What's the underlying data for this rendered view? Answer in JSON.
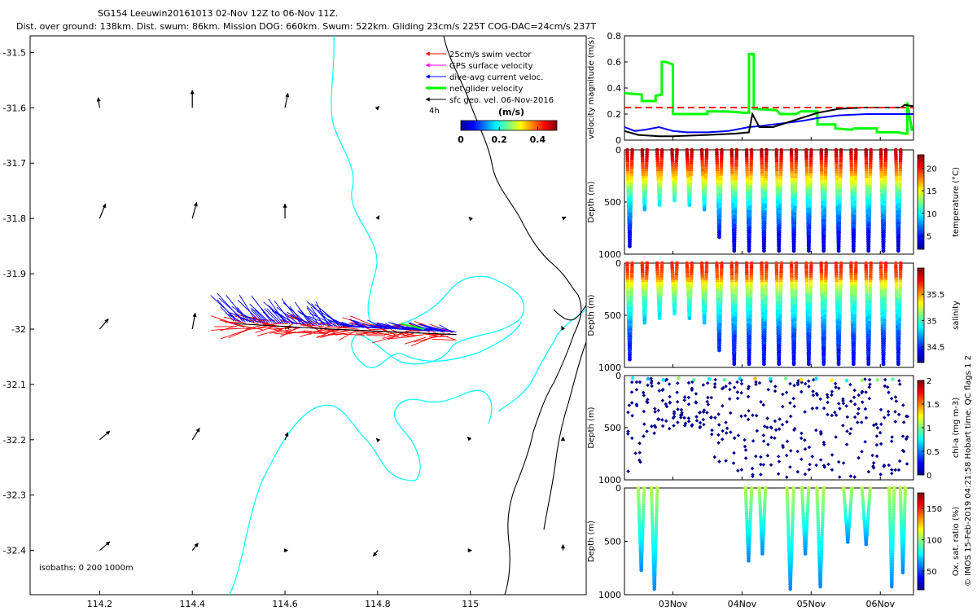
{
  "title": {
    "line1": "SG154 Leeuwin20161013 02-Nov 12Z to 06-Nov 11Z.",
    "line2": "Dist. over ground: 138km. Dist. swum: 86km. Mission DOG: 660km. Swum: 522km. Gliding 23cm/s 225T COG-DAC=24cm/s 237T"
  },
  "colors": {
    "swim": "#ff0000",
    "gps": "#ff00ff",
    "dac": "#0000ff",
    "net": "#00ff00",
    "sfc": "#000000",
    "coast": "#00ffff",
    "isobath": "#000000"
  },
  "chart_data": [
    {
      "type": "scatter",
      "id": "map",
      "xlabel": "",
      "ylabel": "",
      "xlim": [
        114.05,
        115.25
      ],
      "ylim": [
        -32.48,
        -31.47
      ],
      "xticks": [
        114.2,
        114.4,
        114.6,
        114.8,
        115
      ],
      "xtick_labels": [
        "114.2",
        "114.4",
        "114.6",
        "114.8",
        "115"
      ],
      "yticks": [
        -31.5,
        -31.6,
        -31.7,
        -31.8,
        -31.9,
        -32,
        -32.1,
        -32.2,
        -32.3,
        -32.4
      ],
      "ytick_labels": [
        "-31.5",
        "-31.6",
        "-31.7",
        "-31.8",
        "-31.9",
        "-32",
        "-32.1",
        "-32.2",
        "-32.3",
        "-32.4"
      ],
      "legend": [
        {
          "label": "25cm/s swim vector",
          "color": "#ff0000",
          "width": 1
        },
        {
          "label": "GPS surface velocity",
          "color": "#ff00ff",
          "width": 1
        },
        {
          "label": "dive-avg current veloc.",
          "color": "#0000ff",
          "width": 1
        },
        {
          "label": "net glider velocity",
          "color": "#00ff00",
          "width": 3
        },
        {
          "label": "sfc geo. vel. 06-Nov-2016",
          "color": "#000000",
          "width": 1
        }
      ],
      "legend_extra": "4h",
      "colorbar": {
        "label": "(m/s)",
        "ticks": [
          "0",
          "0.2",
          "0.4"
        ],
        "range": [
          0,
          0.5
        ]
      },
      "annotation": "isobaths: 0   200  1000m",
      "track_start": [
        114.49,
        -31.99
      ],
      "track_end": [
        114.97,
        -32.01
      ],
      "geo_vectors": [
        {
          "lon": 114.2,
          "lat": -31.6,
          "u": -0.01,
          "v": 0.07
        },
        {
          "lon": 114.4,
          "lat": -31.6,
          "u": 0.0,
          "v": 0.12
        },
        {
          "lon": 114.6,
          "lat": -31.6,
          "u": 0.02,
          "v": 0.1
        },
        {
          "lon": 114.8,
          "lat": -31.6,
          "u": 0.01,
          "v": 0.01
        },
        {
          "lon": 114.2,
          "lat": -31.8,
          "u": 0.04,
          "v": 0.1
        },
        {
          "lon": 114.4,
          "lat": -31.8,
          "u": 0.03,
          "v": 0.11
        },
        {
          "lon": 114.6,
          "lat": -31.8,
          "u": 0.0,
          "v": 0.1
        },
        {
          "lon": 114.8,
          "lat": -31.8,
          "u": 0.01,
          "v": 0.02
        },
        {
          "lon": 115.0,
          "lat": -31.8,
          "u": -0.01,
          "v": 0.01
        },
        {
          "lon": 115.2,
          "lat": -31.8,
          "u": 0.02,
          "v": 0.01
        },
        {
          "lon": 114.2,
          "lat": -32.0,
          "u": 0.06,
          "v": 0.07
        },
        {
          "lon": 114.4,
          "lat": -32.0,
          "u": 0.02,
          "v": 0.11
        },
        {
          "lon": 114.6,
          "lat": -32.0,
          "u": 0.04,
          "v": 0.02
        },
        {
          "lon": 115.2,
          "lat": -32.0,
          "u": -0.01,
          "v": 0.02
        },
        {
          "lon": 114.2,
          "lat": -32.2,
          "u": 0.07,
          "v": 0.06
        },
        {
          "lon": 114.4,
          "lat": -32.2,
          "u": 0.05,
          "v": 0.08
        },
        {
          "lon": 114.6,
          "lat": -32.2,
          "u": 0.02,
          "v": 0.05
        },
        {
          "lon": 114.8,
          "lat": -32.2,
          "u": -0.01,
          "v": 0.01
        },
        {
          "lon": 115.0,
          "lat": -32.2,
          "u": -0.02,
          "v": 0.02
        },
        {
          "lon": 115.2,
          "lat": -32.2,
          "u": 0.0,
          "v": 0.02
        },
        {
          "lon": 114.2,
          "lat": -32.4,
          "u": 0.07,
          "v": 0.06
        },
        {
          "lon": 114.4,
          "lat": -32.4,
          "u": 0.04,
          "v": 0.05
        },
        {
          "lon": 114.6,
          "lat": -32.4,
          "u": 0.02,
          "v": 0.0
        },
        {
          "lon": 114.8,
          "lat": -32.4,
          "u": -0.03,
          "v": -0.04
        },
        {
          "lon": 115.0,
          "lat": -32.4,
          "u": 0.01,
          "v": 0.0
        },
        {
          "lon": 115.2,
          "lat": -32.4,
          "u": 0.0,
          "v": 0.04
        }
      ]
    },
    {
      "type": "line",
      "id": "velocity",
      "ylabel": "velocity magnitude (m/s)",
      "ylim": [
        0,
        0.8
      ],
      "yticks": [
        0,
        0.2,
        0.4,
        0.6,
        0.8
      ],
      "ytick_labels": [
        "0",
        "0.2",
        "0.4",
        "0.6",
        "0.8"
      ],
      "xlim": [
        2.3,
        6.48
      ],
      "series": [
        {
          "name": "net glider velocity",
          "color": "#00ff00",
          "width": 3,
          "x": [
            2.3,
            2.55,
            2.55,
            2.62,
            2.75,
            2.75,
            2.84,
            2.84,
            2.9,
            3.0,
            3.0,
            3.18,
            3.5,
            3.5,
            3.78,
            4.03,
            4.1,
            4.1,
            4.17,
            4.17,
            4.5,
            4.55,
            4.7,
            4.78,
            4.85,
            5.05,
            5.09,
            5.09,
            5.35,
            5.35,
            5.58,
            5.62,
            5.95,
            5.95,
            6.25,
            6.35,
            6.39,
            6.39,
            6.46
          ],
          "y": [
            0.36,
            0.35,
            0.3,
            0.3,
            0.3,
            0.34,
            0.35,
            0.6,
            0.6,
            0.58,
            0.2,
            0.2,
            0.2,
            0.22,
            0.22,
            0.21,
            0.21,
            0.66,
            0.66,
            0.24,
            0.23,
            0.2,
            0.2,
            0.2,
            0.22,
            0.22,
            0.22,
            0.12,
            0.12,
            0.09,
            0.08,
            0.09,
            0.09,
            0.06,
            0.06,
            0.05,
            0.05,
            0.29,
            0.07
          ]
        },
        {
          "name": "dive-avg current",
          "color": "#0000ff",
          "width": 2,
          "x": [
            2.3,
            2.45,
            2.6,
            2.8,
            3.0,
            3.2,
            3.5,
            3.8,
            4.1,
            4.3,
            4.6,
            4.9,
            5.1,
            5.4,
            5.8,
            6.1,
            6.48
          ],
          "y": [
            0.1,
            0.07,
            0.08,
            0.1,
            0.07,
            0.06,
            0.06,
            0.07,
            0.1,
            0.11,
            0.13,
            0.15,
            0.17,
            0.19,
            0.2,
            0.2,
            0.2
          ]
        },
        {
          "name": "surface geostrophic",
          "color": "#000000",
          "width": 2,
          "x": [
            2.3,
            2.5,
            2.8,
            3.0,
            3.5,
            3.9,
            4.1,
            4.15,
            4.25,
            4.45,
            4.8,
            5.1,
            5.4,
            5.75,
            6.1,
            6.3,
            6.35,
            6.48
          ],
          "y": [
            0.07,
            0.04,
            0.03,
            0.03,
            0.04,
            0.05,
            0.06,
            0.2,
            0.1,
            0.1,
            0.16,
            0.21,
            0.24,
            0.25,
            0.25,
            0.25,
            0.27,
            0.26
          ]
        },
        {
          "name": "swim speed",
          "color": "#ff0000",
          "width": 2,
          "dashed": true,
          "x": [
            2.3,
            6.48
          ],
          "y": [
            0.25,
            0.25
          ]
        }
      ]
    },
    {
      "type": "scatter",
      "id": "temperature",
      "ylabel": "Depth (m)",
      "ylim": [
        1000,
        0
      ],
      "yticks": [
        0,
        500,
        1000
      ],
      "ytick_labels": [
        "0",
        "500",
        "1000"
      ],
      "colorbar": {
        "label": "temperature (°C)",
        "ticks": [
          "5",
          "10",
          "15",
          "20"
        ],
        "range": [
          2,
          23
        ]
      },
      "profile": {
        "t": [
          0,
          50,
          100,
          200,
          300,
          400,
          500,
          600,
          700,
          800,
          900,
          1000
        ],
        "v": [
          22,
          21.5,
          20,
          18,
          15,
          12,
          10,
          8,
          6.5,
          5,
          4,
          3
        ]
      }
    },
    {
      "type": "scatter",
      "id": "salinity",
      "ylabel": "Depth (m)",
      "ylim": [
        1000,
        0
      ],
      "yticks": [
        0,
        500,
        1000
      ],
      "ytick_labels": [
        "0",
        "500",
        "1000"
      ],
      "colorbar": {
        "label": "salinity",
        "ticks": [
          "34.5",
          "35",
          "35.5"
        ],
        "range": [
          34.2,
          36.0
        ]
      },
      "profile": {
        "t": [
          0,
          50,
          100,
          150,
          200,
          300,
          400,
          500,
          600,
          700,
          800,
          1000
        ],
        "v": [
          35.7,
          35.7,
          35.65,
          35.55,
          35.3,
          35.1,
          34.95,
          34.85,
          34.7,
          34.55,
          34.5,
          34.4
        ]
      }
    },
    {
      "type": "scatter",
      "id": "chla",
      "ylabel": "Depth (m)",
      "ylim": [
        1000,
        0
      ],
      "yticks": [
        0,
        500,
        1000
      ],
      "ytick_labels": [
        "0",
        "500",
        "1000"
      ],
      "colorbar": {
        "label": "chl-a (mg m-3)",
        "ticks": [
          "0",
          "0.5",
          "1",
          "1.5",
          "2"
        ],
        "range": [
          0,
          2
        ]
      }
    },
    {
      "type": "scatter",
      "id": "oxygen",
      "ylabel": "Depth (m)",
      "ylim": [
        1000,
        0
      ],
      "yticks": [
        0,
        500,
        1000
      ],
      "ytick_labels": [
        "0",
        "500",
        "1000"
      ],
      "xlim": [
        2.3,
        6.48
      ],
      "xticks": [
        3,
        4,
        5,
        6
      ],
      "xtick_labels": [
        "03Nov",
        "04Nov",
        "05Nov",
        "06Nov"
      ],
      "colorbar": {
        "label": "Ox. sat. ratio (%)",
        "ticks": [
          "50",
          "100",
          "150"
        ],
        "range": [
          20,
          175
        ]
      },
      "segments": [
        [
          2.5,
          2.88
        ],
        [
          4.05,
          4.45
        ],
        [
          4.65,
          5.3
        ],
        [
          5.47,
          6.0
        ],
        [
          6.13,
          6.45
        ]
      ]
    }
  ],
  "side_note": "© IMOS 15-Feb-2019 04:21:58 Hobart time. QC flags 1  2"
}
